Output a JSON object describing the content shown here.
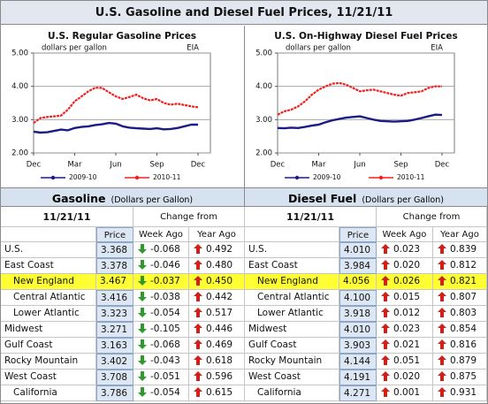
{
  "title": "U.S. Gasoline and Diesel Fuel Prices, 11/21/11",
  "chart_data": [
    {
      "type": "line",
      "title": "U.S. Regular Gasoline Prices",
      "subtitle": "dollars per gallon",
      "annotation": "EIA",
      "categories": [
        "Dec",
        null,
        null,
        null,
        null,
        null,
        "Mar",
        null,
        null,
        null,
        null,
        null,
        "Jun",
        null,
        null,
        null,
        null,
        null,
        "Sep",
        null,
        null,
        null,
        null,
        null,
        "Dec"
      ],
      "series": [
        {
          "name": "2009-10",
          "color": "#1c1c86",
          "values": [
            2.64,
            2.61,
            2.62,
            2.66,
            2.7,
            2.68,
            2.75,
            2.78,
            2.8,
            2.84,
            2.86,
            2.9,
            2.88,
            2.8,
            2.76,
            2.74,
            2.73,
            2.72,
            2.74,
            2.71,
            2.72,
            2.75,
            2.8,
            2.85,
            2.85
          ]
        },
        {
          "name": "2010-11",
          "color": "#f02020",
          "values": [
            2.9,
            3.05,
            3.08,
            3.1,
            3.12,
            3.3,
            3.55,
            3.7,
            3.85,
            3.96,
            3.95,
            3.82,
            3.7,
            3.62,
            3.68,
            3.75,
            3.64,
            3.58,
            3.62,
            3.5,
            3.45,
            3.48,
            3.44,
            3.4,
            3.37
          ]
        }
      ],
      "ylim": [
        2,
        5
      ],
      "yticks": [
        {
          "value": 2,
          "label": "2.00"
        },
        {
          "value": 3,
          "label": "3.00"
        },
        {
          "value": 4,
          "label": "4.00"
        },
        {
          "value": 5,
          "label": "5.00"
        }
      ],
      "grid": true,
      "legend": "bottom"
    },
    {
      "type": "line",
      "title": "U.S. On-Highway Diesel Fuel Prices",
      "subtitle": "dollars per gallon",
      "annotation": "EIA",
      "categories": [
        "Dec",
        null,
        null,
        null,
        null,
        null,
        "Mar",
        null,
        null,
        null,
        null,
        null,
        "Jun",
        null,
        null,
        null,
        null,
        null,
        "Sep",
        null,
        null,
        null,
        null,
        null,
        "Dec"
      ],
      "series": [
        {
          "name": "2009-10",
          "color": "#1c1c86",
          "values": [
            2.75,
            2.74,
            2.76,
            2.75,
            2.78,
            2.82,
            2.85,
            2.92,
            2.98,
            3.02,
            3.06,
            3.08,
            3.1,
            3.05,
            3.0,
            2.96,
            2.95,
            2.94,
            2.95,
            2.96,
            3.0,
            3.05,
            3.1,
            3.15,
            3.14
          ]
        },
        {
          "name": "2010-11",
          "color": "#f02020",
          "values": [
            3.15,
            3.25,
            3.3,
            3.4,
            3.55,
            3.75,
            3.9,
            4.0,
            4.08,
            4.1,
            4.05,
            3.95,
            3.85,
            3.88,
            3.9,
            3.85,
            3.8,
            3.75,
            3.72,
            3.8,
            3.82,
            3.85,
            3.95,
            4.0,
            4.0
          ]
        }
      ],
      "ylim": [
        2,
        5
      ],
      "yticks": [
        {
          "value": 2,
          "label": "2.00"
        },
        {
          "value": 3,
          "label": "3.00"
        },
        {
          "value": 4,
          "label": "4.00"
        },
        {
          "value": 5,
          "label": "5.00"
        }
      ],
      "grid": true,
      "legend": "bottom"
    }
  ],
  "tables": [
    {
      "title": "Gasoline",
      "unit": "(Dollars per Gallon)",
      "date": "11/21/11",
      "change_header": "Change from",
      "columns": [
        "Price",
        "Week Ago",
        "Year Ago"
      ],
      "rows": [
        [
          "U.S.",
          "3.368",
          "-0.068",
          "0.492"
        ],
        [
          "East Coast",
          "3.378",
          "-0.046",
          "0.480"
        ],
        [
          "New England",
          "3.467",
          "-0.037",
          "0.450"
        ],
        [
          "Central Atlantic",
          "3.416",
          "-0.038",
          "0.442"
        ],
        [
          "Lower Atlantic",
          "3.323",
          "-0.054",
          "0.517"
        ],
        [
          "Midwest",
          "3.271",
          "-0.105",
          "0.446"
        ],
        [
          "Gulf Coast",
          "3.163",
          "-0.068",
          "0.469"
        ],
        [
          "Rocky Mountain",
          "3.402",
          "-0.043",
          "0.618"
        ],
        [
          "West Coast",
          "3.708",
          "-0.051",
          "0.596"
        ],
        [
          "California",
          "3.786",
          "-0.054",
          "0.615"
        ]
      ]
    },
    {
      "title": "Diesel Fuel",
      "unit": "(Dollars per Gallon)",
      "date": "11/21/11",
      "change_header": "Change from",
      "columns": [
        "Price",
        "Week Ago",
        "Year Ago"
      ],
      "rows": [
        [
          "U.S.",
          "4.010",
          "0.023",
          "0.839"
        ],
        [
          "East Coast",
          "3.984",
          "0.020",
          "0.812"
        ],
        [
          "New England",
          "4.056",
          "0.026",
          "0.821"
        ],
        [
          "Central Atlantic",
          "4.100",
          "0.015",
          "0.807"
        ],
        [
          "Lower Atlantic",
          "3.918",
          "0.012",
          "0.803"
        ],
        [
          "Midwest",
          "4.010",
          "0.023",
          "0.854"
        ],
        [
          "Gulf Coast",
          "3.903",
          "0.021",
          "0.816"
        ],
        [
          "Rocky Mountain",
          "4.144",
          "0.051",
          "0.879"
        ],
        [
          "West Coast",
          "4.191",
          "0.020",
          "0.875"
        ],
        [
          "California",
          "4.271",
          "0.001",
          "0.931"
        ]
      ]
    }
  ]
}
